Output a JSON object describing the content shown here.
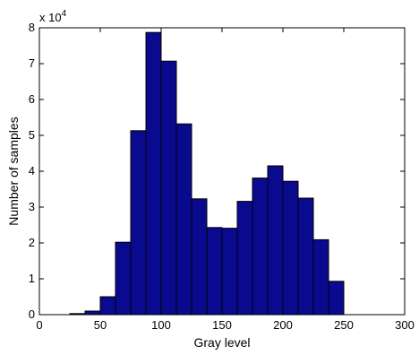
{
  "chart_data": {
    "type": "bar",
    "xlabel": "Gray level",
    "ylabel": "Number of samples",
    "y_multiplier_base": "x 10",
    "y_multiplier_exponent": "4",
    "xlim": [
      0,
      300
    ],
    "ylim": [
      0,
      8
    ],
    "x_ticks": [
      0,
      50,
      100,
      150,
      200,
      250,
      300
    ],
    "y_ticks": [
      0,
      1,
      2,
      3,
      4,
      5,
      6,
      7,
      8
    ],
    "bin_width": 12.5,
    "bins": [
      {
        "center": 18.75,
        "value": 0.0
      },
      {
        "center": 31.25,
        "value": 0.03
      },
      {
        "center": 43.75,
        "value": 0.1
      },
      {
        "center": 56.25,
        "value": 0.5
      },
      {
        "center": 68.75,
        "value": 2.02
      },
      {
        "center": 81.25,
        "value": 5.13
      },
      {
        "center": 93.75,
        "value": 7.87
      },
      {
        "center": 106.25,
        "value": 7.07
      },
      {
        "center": 118.75,
        "value": 5.32
      },
      {
        "center": 131.25,
        "value": 3.23
      },
      {
        "center": 143.75,
        "value": 2.43
      },
      {
        "center": 156.25,
        "value": 2.41
      },
      {
        "center": 168.75,
        "value": 3.16
      },
      {
        "center": 181.25,
        "value": 3.81
      },
      {
        "center": 193.75,
        "value": 4.15
      },
      {
        "center": 206.25,
        "value": 3.72
      },
      {
        "center": 218.75,
        "value": 3.25
      },
      {
        "center": 231.25,
        "value": 2.09
      },
      {
        "center": 243.75,
        "value": 0.93
      }
    ],
    "bar_color": "#0a0a8f",
    "bar_edge_color": "#000000",
    "grid": false
  }
}
